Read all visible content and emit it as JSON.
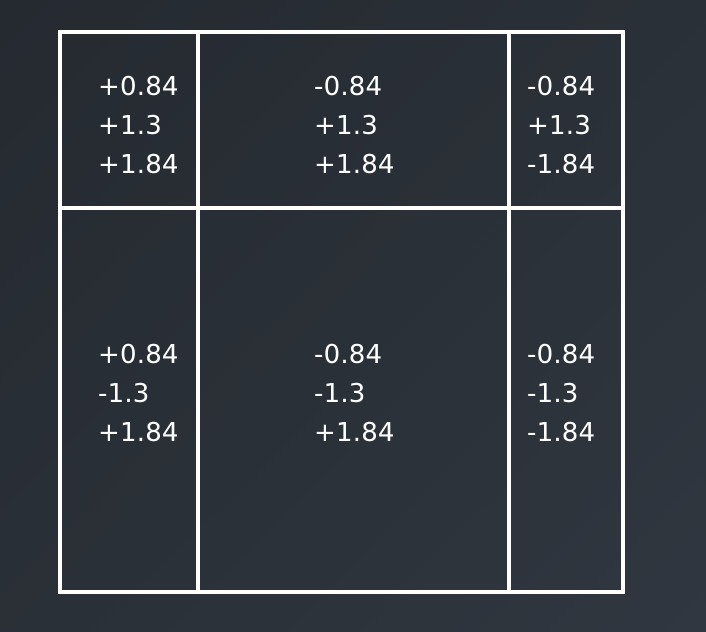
{
  "cells": {
    "top_left": [
      "+0.84",
      "+1.3",
      "+1.84"
    ],
    "top_middle": [
      "-0.84",
      "+1.3",
      "+1.84"
    ],
    "top_right": [
      "-0.84",
      "+1.3",
      "-1.84"
    ],
    "bottom_left": [
      "+0.84",
      "-1.3",
      "+1.84"
    ],
    "bottom_middle": [
      "-0.84",
      "-1.3",
      "+1.84"
    ],
    "bottom_right": [
      "-0.84",
      "-1.3",
      "-1.84"
    ]
  },
  "colors": {
    "background": "#2a3037",
    "lines": "#ffffff",
    "text": "#ffffff"
  }
}
